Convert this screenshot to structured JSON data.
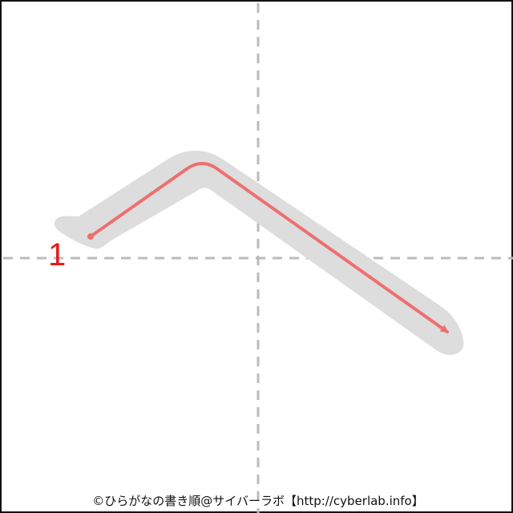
{
  "stroke_order": {
    "stroke_count_label": "1",
    "credit": "©ひらがなの書き順@サイバーラボ【http://cyberlab.info】"
  },
  "colors": {
    "guide_line": "#bbbbbb",
    "character_shape": "#dddddd",
    "stroke_arrow": "#ee6f6f",
    "stroke_number": "#e01b1b",
    "frame": "#111111"
  }
}
